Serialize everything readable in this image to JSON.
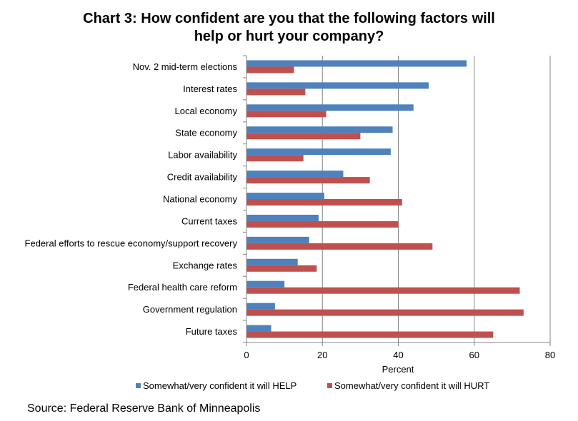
{
  "title_lines": [
    "Chart 3: How confident are you that the following factors will",
    "help or hurt your company?"
  ],
  "source": "Source: Federal Reserve Bank of Minneapolis",
  "colors": {
    "help": "#4F81BD",
    "hurt": "#C0504D",
    "grid": "#868686"
  },
  "chart_data": {
    "type": "bar",
    "orientation": "horizontal",
    "title": "Chart 3: How confident are you that the following factors will help or hurt your company?",
    "xlabel": "Percent",
    "ylabel": "",
    "xlim": [
      0,
      80
    ],
    "xticks": [
      0,
      20,
      40,
      60,
      80
    ],
    "grid": true,
    "legend_position": "bottom",
    "categories": [
      "Nov. 2 mid-term elections",
      "Interest rates",
      "Local economy",
      "State economy",
      "Labor availability",
      "Credit availability",
      "National economy",
      "Current taxes",
      "Federal efforts to rescue economy/support recovery",
      "Exchange rates",
      "Federal health care  reform",
      "Government regulation",
      "Future taxes"
    ],
    "series": [
      {
        "name": "Somewhat/very confident it will HELP",
        "values": [
          58,
          48,
          44,
          38.5,
          38,
          25.5,
          20.5,
          19,
          16.5,
          13.5,
          10,
          7.5,
          6.5
        ]
      },
      {
        "name": "Somewhat/very confident it will HURT",
        "values": [
          12.5,
          15.5,
          21,
          30,
          15,
          32.5,
          41,
          40,
          49,
          18.5,
          72,
          73,
          65
        ]
      }
    ]
  }
}
